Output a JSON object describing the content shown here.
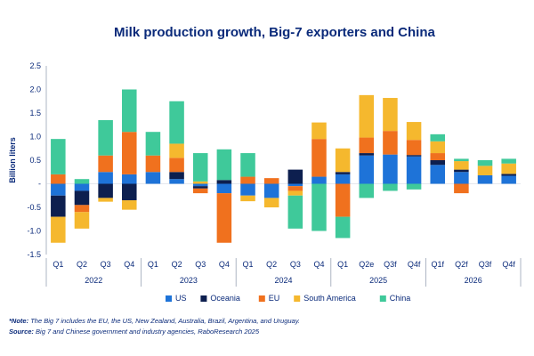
{
  "title": "Milk production growth, Big-7 exporters and China",
  "note_label": "*Note:",
  "note_text": "The Big 7 includes the EU, the US, New Zealand, Australia, Brazil, Argentina, and Uruguay.",
  "source_label": "Source:",
  "source_text": "Big 7 and Chinese government and industry agencies, RaboResearch 2025",
  "chart_data": {
    "type": "bar",
    "stacked": true,
    "title": "Milk production growth, Big-7 exporters and China",
    "ylabel": "Billion liters",
    "xlabel": "",
    "ylim": [
      -1.5,
      2.5
    ],
    "yticks": [
      "2.5",
      "2.0",
      "1.5",
      "1.0",
      "0.5",
      "-",
      "-0.5",
      "-1.0",
      "-1.5"
    ],
    "grid": false,
    "legend_position": "bottom",
    "categories": [
      "Q1",
      "Q2",
      "Q3",
      "Q4",
      "Q1",
      "Q2",
      "Q3",
      "Q4",
      "Q1",
      "Q2",
      "Q3",
      "Q4",
      "Q1",
      "Q2e",
      "Q3f",
      "Q4f",
      "Q1f",
      "Q2f",
      "Q3f",
      "Q4f"
    ],
    "year_groups": [
      {
        "label": "2022",
        "count": 4
      },
      {
        "label": "2023",
        "count": 4
      },
      {
        "label": "2024",
        "count": 4
      },
      {
        "label": "2025",
        "count": 4
      },
      {
        "label": "2026",
        "count": 4
      }
    ],
    "series": [
      {
        "name": "US",
        "color": "#1e73d8",
        "values": [
          -0.25,
          -0.15,
          0.25,
          0.2,
          0.25,
          0.1,
          -0.05,
          -0.2,
          -0.25,
          -0.3,
          -0.05,
          0.15,
          0.2,
          0.6,
          0.62,
          0.58,
          0.4,
          0.25,
          0.18,
          0.17
        ]
      },
      {
        "name": "Oceania",
        "color": "#0d1f4f",
        "values": [
          -0.45,
          -0.3,
          -0.3,
          -0.35,
          0.0,
          0.15,
          -0.05,
          0.08,
          0.0,
          0.0,
          0.3,
          0.0,
          0.05,
          0.05,
          0.0,
          0.03,
          0.1,
          0.05,
          0.0,
          0.04
        ]
      },
      {
        "name": "EU",
        "color": "#f0711e",
        "values": [
          0.2,
          -0.15,
          0.35,
          0.9,
          0.35,
          0.3,
          -0.1,
          -1.05,
          0.15,
          0.12,
          -0.1,
          0.8,
          -0.7,
          0.33,
          0.5,
          0.32,
          0.15,
          -0.2,
          0.0,
          0.0
        ]
      },
      {
        "name": "South America",
        "color": "#f5b82e",
        "values": [
          -0.55,
          -0.35,
          -0.08,
          -0.2,
          0.0,
          0.3,
          0.05,
          0.0,
          -0.12,
          -0.2,
          -0.1,
          0.35,
          0.5,
          0.9,
          0.7,
          0.38,
          0.25,
          0.18,
          0.2,
          0.22
        ]
      },
      {
        "name": "China",
        "color": "#3fc99a",
        "values": [
          0.75,
          0.1,
          0.75,
          0.9,
          0.5,
          0.9,
          0.6,
          0.65,
          0.5,
          0.0,
          -0.7,
          -1.0,
          -0.45,
          -0.3,
          -0.15,
          -0.12,
          0.15,
          0.05,
          0.12,
          0.1
        ]
      }
    ]
  }
}
